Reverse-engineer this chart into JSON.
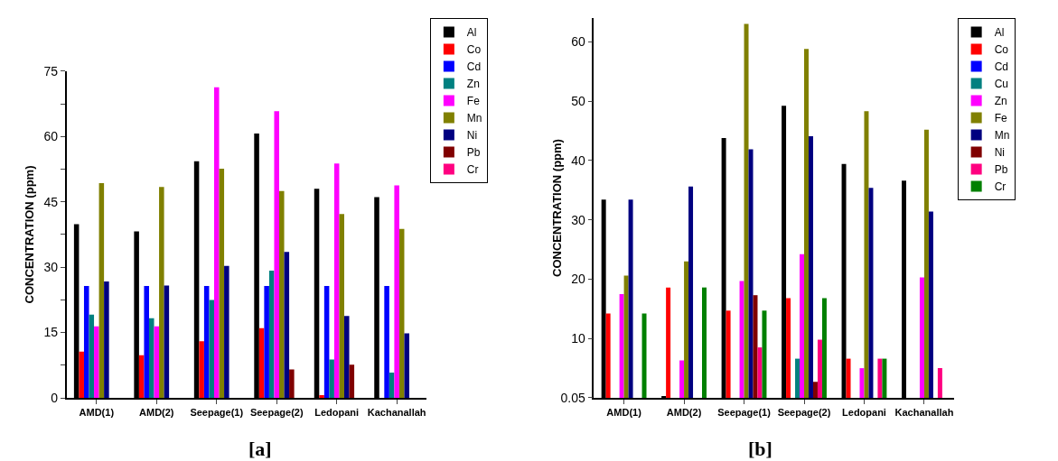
{
  "chart_data": [
    {
      "type": "bar",
      "ylabel": "CONCENTRATION (ppm)",
      "categories": [
        "AMD(1)",
        "AMD(2)",
        "Seepage(1)",
        "Seepage(2)",
        "Ledopani",
        "Kachanallah"
      ],
      "series": [
        {
          "name": "Al",
          "color": "#000000",
          "values": [
            39.9,
            38.2,
            54.3,
            60.7,
            48.0,
            46.1
          ]
        },
        {
          "name": "Co",
          "color": "#ff0000",
          "values": [
            10.6,
            9.8,
            13.0,
            16.0,
            0.6,
            null
          ]
        },
        {
          "name": "Cd",
          "color": "#0000ff",
          "values": [
            25.7,
            25.7,
            25.7,
            25.7,
            25.7,
            25.7
          ]
        },
        {
          "name": "Zn",
          "color": "#008080",
          "values": [
            19.1,
            18.3,
            22.5,
            29.2,
            8.8,
            5.8
          ]
        },
        {
          "name": "Fe",
          "color": "#ff00ff",
          "values": [
            16.4,
            16.4,
            71.3,
            65.8,
            53.8,
            48.8
          ]
        },
        {
          "name": "Mn",
          "color": "#808000",
          "values": [
            49.3,
            48.4,
            52.6,
            47.5,
            42.2,
            38.8
          ]
        },
        {
          "name": "Ni",
          "color": "#000080",
          "values": [
            26.7,
            25.8,
            30.3,
            33.5,
            18.8,
            14.8
          ]
        },
        {
          "name": "Pb",
          "color": "#800000",
          "values": [
            null,
            null,
            null,
            6.5,
            7.6,
            null
          ]
        },
        {
          "name": "Cr",
          "color": "#ff0080",
          "values": [
            null,
            null,
            null,
            null,
            null,
            null
          ]
        }
      ],
      "ylim": [
        0,
        75
      ],
      "yticks": [
        0,
        {
          "value": 7.5,
          "label": null
        },
        15,
        {
          "value": 22.5,
          "label": null
        },
        30,
        {
          "value": 37.5,
          "label": null
        },
        45,
        {
          "value": 52.5,
          "label": null
        },
        60,
        {
          "value": 67.5,
          "label": null
        },
        75
      ],
      "grid": false,
      "legend": "top right",
      "annotations": [
        "[a]"
      ]
    },
    {
      "type": "bar",
      "ylabel": "CONCENTRATION (ppm)",
      "categories": [
        "AMD(1)",
        "AMD(2)",
        "Seepage(1)",
        "Seepage(2)",
        "Ledopani",
        "Kachanallah"
      ],
      "series": [
        {
          "name": "Al",
          "color": "#000000",
          "values": [
            33.4,
            0.2,
            43.8,
            49.2,
            39.4,
            36.6
          ]
        },
        {
          "name": "Co",
          "color": "#ff0000",
          "values": [
            14.2,
            18.6,
            14.7,
            16.8,
            6.6,
            null
          ]
        },
        {
          "name": "Cd",
          "color": "#0000ff",
          "values": [
            null,
            null,
            null,
            null,
            null,
            null
          ]
        },
        {
          "name": "Cu",
          "color": "#008080",
          "values": [
            null,
            null,
            null,
            6.6,
            null,
            null
          ]
        },
        {
          "name": "Zn",
          "color": "#ff00ff",
          "values": [
            17.5,
            6.3,
            19.7,
            24.2,
            5.0,
            20.3
          ]
        },
        {
          "name": "Fe",
          "color": "#808000",
          "values": [
            20.6,
            23.0,
            63.0,
            58.8,
            48.3,
            45.2
          ]
        },
        {
          "name": "Mn",
          "color": "#000080",
          "values": [
            33.4,
            35.6,
            41.9,
            44.1,
            35.4,
            31.4
          ]
        },
        {
          "name": "Ni",
          "color": "#800000",
          "values": [
            null,
            null,
            17.3,
            2.7,
            null,
            null
          ]
        },
        {
          "name": "Pb",
          "color": "#ff0080",
          "values": [
            null,
            null,
            8.5,
            9.8,
            6.6,
            5.0
          ]
        },
        {
          "name": "Cr",
          "color": "#008000",
          "values": [
            14.2,
            18.6,
            14.7,
            16.8,
            6.6,
            null
          ]
        }
      ],
      "ylim": [
        0,
        64
      ],
      "yticks": [
        0.05,
        10,
        20,
        30,
        40,
        50,
        60
      ],
      "grid": false,
      "legend": "top right",
      "annotations": [
        "[b]"
      ]
    }
  ]
}
